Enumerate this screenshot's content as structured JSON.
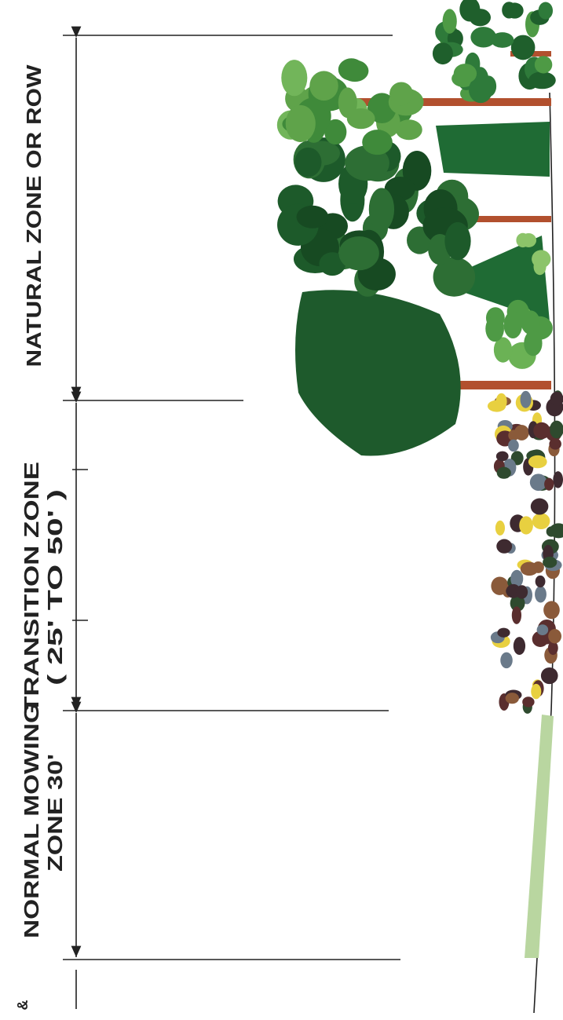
{
  "zones": {
    "natural": "NATURAL ZONE OR ROW",
    "transition": [
      "TRANSITION ZONE",
      "( 25' TO 50' )"
    ],
    "mowing": [
      "NORMAL MOWING",
      "ZONE 30'"
    ],
    "corner": "&"
  }
}
